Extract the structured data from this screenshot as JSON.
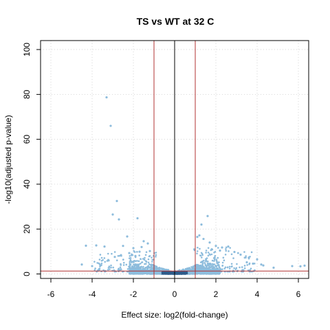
{
  "chart_data": {
    "type": "scatter",
    "title": "TS vs WT at 32 C",
    "xlabel": "Effect size: log2(fold-change)",
    "ylabel": "-log10(adjusted p-value)",
    "xlim": [
      -6.5,
      6.5
    ],
    "ylim": [
      -2,
      104
    ],
    "xticks": [
      "-6",
      "-4",
      "-2",
      "0",
      "2",
      "4",
      "6"
    ],
    "xtick_values": [
      -6,
      -4,
      -2,
      0,
      2,
      4,
      6
    ],
    "yticks": [
      "0",
      "20",
      "40",
      "60",
      "80",
      "100"
    ],
    "ytick_values": [
      0,
      20,
      40,
      60,
      80,
      100
    ],
    "grid": true,
    "point_color": "#8dbcdc",
    "threshold_color": "#b03030",
    "vlines_red": [
      -1,
      1
    ],
    "vline_black": 0,
    "hline_red": 1.3,
    "series": [
      {
        "points": [
          [
            -3.3,
            78.7
          ],
          [
            -3.1,
            66.0
          ],
          [
            -2.8,
            32.5
          ],
          [
            -3.0,
            26.5
          ],
          [
            -2.7,
            24.3
          ],
          [
            -1.8,
            24.8
          ],
          [
            1.6,
            25.8
          ],
          [
            1.3,
            22.0
          ],
          [
            1.1,
            16.5
          ],
          [
            -2.3,
            16.7
          ],
          [
            -4.3,
            12.6
          ],
          [
            -3.8,
            12.7
          ],
          [
            -3.4,
            12.2
          ],
          [
            -2.5,
            12.5
          ],
          [
            -1.5,
            14.6
          ],
          [
            -1.3,
            13.6
          ],
          [
            -1.6,
            12.0
          ],
          [
            -2.0,
            11.5
          ],
          [
            1.2,
            17.2
          ],
          [
            1.4,
            15.6
          ],
          [
            1.7,
            14.0
          ],
          [
            2.0,
            12.5
          ],
          [
            2.3,
            11.8
          ],
          [
            2.6,
            12.2
          ],
          [
            1.8,
            11.0
          ],
          [
            2.2,
            10.4
          ],
          [
            2.9,
            9.8
          ],
          [
            3.2,
            8.6
          ],
          [
            3.6,
            7.3
          ],
          [
            4.0,
            6.5
          ],
          [
            4.2,
            4.2
          ],
          [
            4.3,
            3.8
          ],
          [
            4.8,
            2.8
          ],
          [
            5.7,
            3.5
          ],
          [
            6.1,
            3.4
          ],
          [
            6.3,
            3.7
          ],
          [
            3.8,
            4.6
          ],
          [
            3.5,
            5.2
          ],
          [
            -4.5,
            4.2
          ],
          [
            -4.0,
            3.5
          ],
          [
            -3.6,
            3.8
          ],
          [
            -3.2,
            6.0
          ],
          [
            -2.9,
            7.6
          ],
          [
            -2.6,
            8.4
          ],
          [
            -2.2,
            9.3
          ],
          [
            -1.9,
            8.0
          ],
          [
            -1.7,
            9.9
          ],
          [
            -1.2,
            10.2
          ]
        ]
      }
    ]
  }
}
